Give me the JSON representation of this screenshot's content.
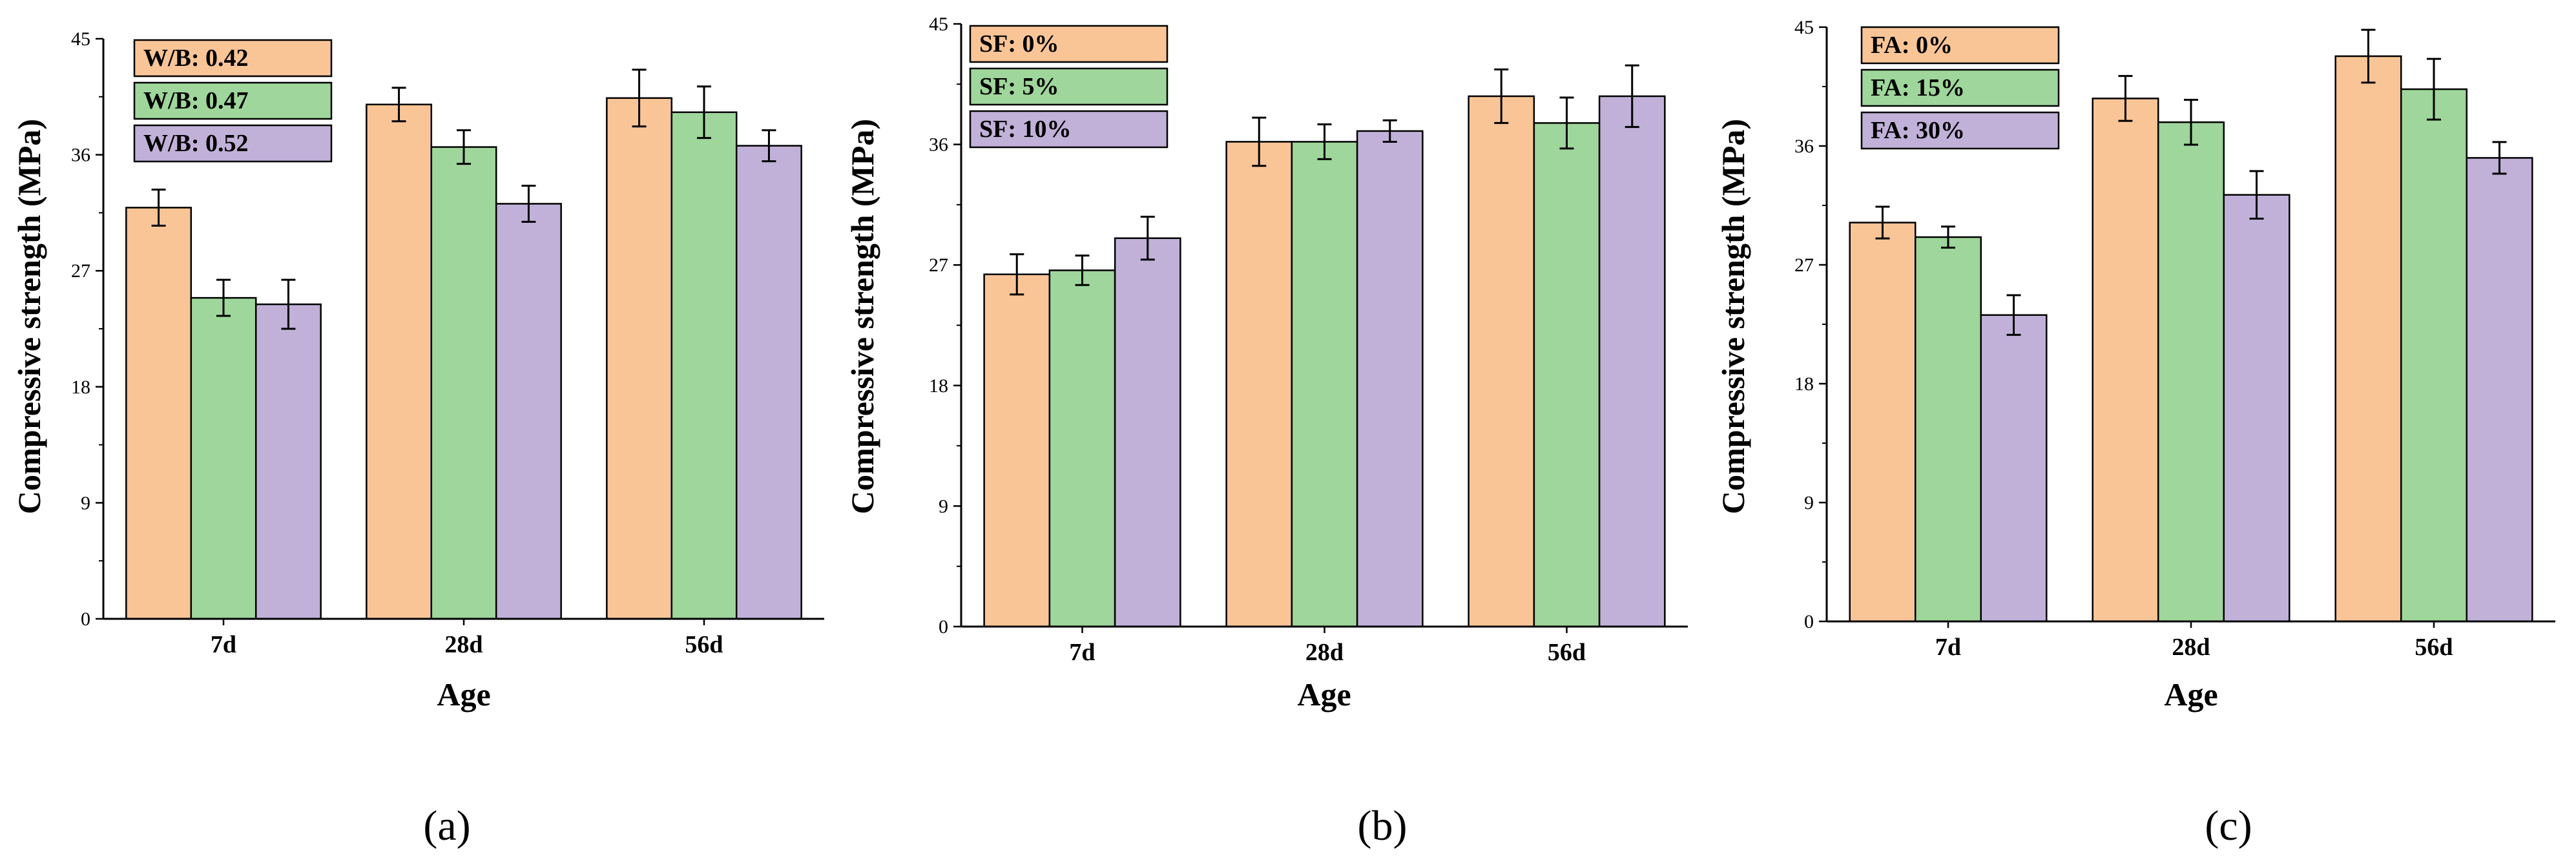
{
  "figure": {
    "colors": [
      "#F9C597",
      "#9FD69B",
      "#C1B1D9"
    ],
    "y_ticks": [
      "0",
      "9",
      "18",
      "27",
      "36",
      "45"
    ]
  },
  "chart_data": [
    {
      "type": "bar",
      "panel_label": "(a)",
      "categories": [
        "7d",
        "28d",
        "56d"
      ],
      "series": [
        {
          "name": "W/B: 0.42",
          "values": [
            31.9,
            39.9,
            40.4
          ],
          "errors": [
            1.4,
            1.3,
            2.2
          ]
        },
        {
          "name": "W/B: 0.47",
          "values": [
            24.9,
            36.6,
            39.3
          ],
          "errors": [
            1.4,
            1.3,
            2.0
          ]
        },
        {
          "name": "W/B: 0.52",
          "values": [
            24.4,
            32.2,
            36.7
          ],
          "errors": [
            1.9,
            1.4,
            1.2
          ]
        }
      ],
      "xlabel": "Age",
      "ylabel": "Compressive strength (MPa)",
      "ylim": [
        0,
        45
      ],
      "y_ticks": [
        0,
        9,
        18,
        27,
        36,
        45
      ],
      "legend_position": "top-left"
    },
    {
      "type": "bar",
      "panel_label": "(b)",
      "categories": [
        "7d",
        "28d",
        "56d"
      ],
      "series": [
        {
          "name": "SF: 0%",
          "values": [
            26.3,
            36.2,
            39.6
          ],
          "errors": [
            1.5,
            1.8,
            2.0
          ]
        },
        {
          "name": "SF: 5%",
          "values": [
            26.6,
            36.2,
            37.6
          ],
          "errors": [
            1.1,
            1.3,
            1.9
          ]
        },
        {
          "name": "SF: 10%",
          "values": [
            29.0,
            37.0,
            39.6
          ],
          "errors": [
            1.6,
            0.8,
            2.3
          ]
        }
      ],
      "xlabel": "Age",
      "ylabel": "Compressive strength (MPa)",
      "ylim": [
        0,
        45
      ],
      "y_ticks": [
        0,
        9,
        18,
        27,
        36,
        45
      ],
      "legend_position": "top-left"
    },
    {
      "type": "bar",
      "panel_label": "(c)",
      "categories": [
        "7d",
        "28d",
        "56d"
      ],
      "series": [
        {
          "name": "FA: 0%",
          "values": [
            30.2,
            39.6,
            42.8
          ],
          "errors": [
            1.2,
            1.7,
            2.0
          ]
        },
        {
          "name": "FA: 15%",
          "values": [
            29.1,
            37.8,
            40.3
          ],
          "errors": [
            0.8,
            1.7,
            2.3
          ]
        },
        {
          "name": "FA: 30%",
          "values": [
            23.2,
            32.3,
            35.1
          ],
          "errors": [
            1.5,
            1.8,
            1.2
          ]
        }
      ],
      "xlabel": "Age",
      "ylabel": "Compressive strength (MPa)",
      "ylim": [
        0,
        45
      ],
      "y_ticks": [
        0,
        9,
        18,
        27,
        36,
        45
      ],
      "legend_position": "top-left"
    }
  ]
}
